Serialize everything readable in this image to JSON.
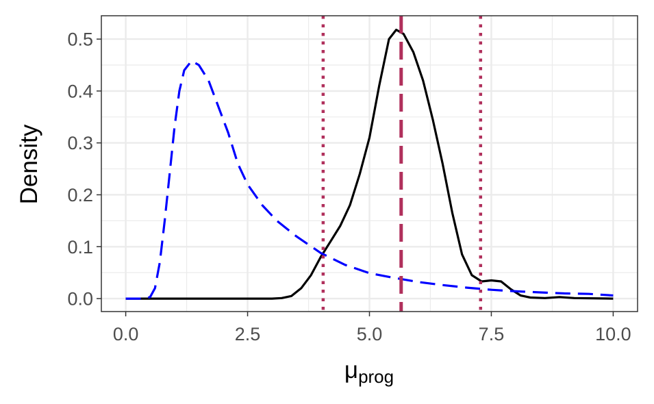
{
  "chart_data": {
    "type": "line",
    "title": "",
    "xlabel": {
      "main": "μ",
      "sub": "prog"
    },
    "ylabel": "Density",
    "xlim": [
      -0.5,
      10.5
    ],
    "ylim": [
      -0.025,
      0.545
    ],
    "x_ticks": [
      0.0,
      2.5,
      5.0,
      7.5,
      10.0
    ],
    "x_tick_labels": [
      "0.0",
      "2.5",
      "5.0",
      "7.5",
      "10.0"
    ],
    "y_ticks": [
      0.0,
      0.1,
      0.2,
      0.3,
      0.4,
      0.5
    ],
    "y_tick_labels": [
      "0.0",
      "0.1",
      "0.2",
      "0.3",
      "0.4",
      "0.5"
    ],
    "grid": true,
    "legend": "none",
    "series": [
      {
        "style": "solid",
        "color": "#000000",
        "points": [
          [
            0.0,
            0.0
          ],
          [
            2.5,
            0.0
          ],
          [
            3.0,
            0.0
          ],
          [
            3.2,
            0.001
          ],
          [
            3.4,
            0.005
          ],
          [
            3.6,
            0.02
          ],
          [
            3.8,
            0.045
          ],
          [
            4.0,
            0.08
          ],
          [
            4.2,
            0.11
          ],
          [
            4.4,
            0.14
          ],
          [
            4.6,
            0.18
          ],
          [
            4.8,
            0.24
          ],
          [
            5.0,
            0.31
          ],
          [
            5.2,
            0.41
          ],
          [
            5.4,
            0.5
          ],
          [
            5.55,
            0.518
          ],
          [
            5.7,
            0.51
          ],
          [
            5.9,
            0.475
          ],
          [
            6.1,
            0.42
          ],
          [
            6.3,
            0.345
          ],
          [
            6.5,
            0.26
          ],
          [
            6.7,
            0.165
          ],
          [
            6.9,
            0.085
          ],
          [
            7.1,
            0.045
          ],
          [
            7.3,
            0.033
          ],
          [
            7.5,
            0.035
          ],
          [
            7.7,
            0.033
          ],
          [
            7.9,
            0.018
          ],
          [
            8.1,
            0.006
          ],
          [
            8.3,
            0.002
          ],
          [
            8.6,
            0.001
          ],
          [
            8.9,
            0.003
          ],
          [
            9.2,
            0.001
          ],
          [
            10.0,
            0.0
          ]
        ]
      },
      {
        "style": "dashed",
        "color": "#0000ff",
        "points": [
          [
            0.0,
            0.0
          ],
          [
            0.4,
            0.0
          ],
          [
            0.5,
            0.003
          ],
          [
            0.6,
            0.02
          ],
          [
            0.7,
            0.07
          ],
          [
            0.8,
            0.15
          ],
          [
            0.9,
            0.24
          ],
          [
            1.0,
            0.33
          ],
          [
            1.1,
            0.4
          ],
          [
            1.2,
            0.44
          ],
          [
            1.35,
            0.458
          ],
          [
            1.5,
            0.45
          ],
          [
            1.7,
            0.42
          ],
          [
            1.9,
            0.37
          ],
          [
            2.1,
            0.32
          ],
          [
            2.3,
            0.26
          ],
          [
            2.5,
            0.22
          ],
          [
            2.8,
            0.18
          ],
          [
            3.1,
            0.15
          ],
          [
            3.5,
            0.12
          ],
          [
            4.0,
            0.088
          ],
          [
            4.5,
            0.065
          ],
          [
            5.0,
            0.049
          ],
          [
            5.5,
            0.04
          ],
          [
            6.0,
            0.032
          ],
          [
            6.5,
            0.026
          ],
          [
            7.0,
            0.021
          ],
          [
            7.5,
            0.017
          ],
          [
            8.0,
            0.014
          ],
          [
            8.5,
            0.012
          ],
          [
            9.0,
            0.01
          ],
          [
            9.5,
            0.009
          ],
          [
            10.0,
            0.006
          ]
        ]
      }
    ],
    "vlines": [
      {
        "x": 4.05,
        "style": "dotted",
        "color": "#b0305c"
      },
      {
        "x": 5.65,
        "style": "dashed",
        "color": "#b0305c"
      },
      {
        "x": 7.28,
        "style": "dotted",
        "color": "#b0305c"
      }
    ]
  }
}
